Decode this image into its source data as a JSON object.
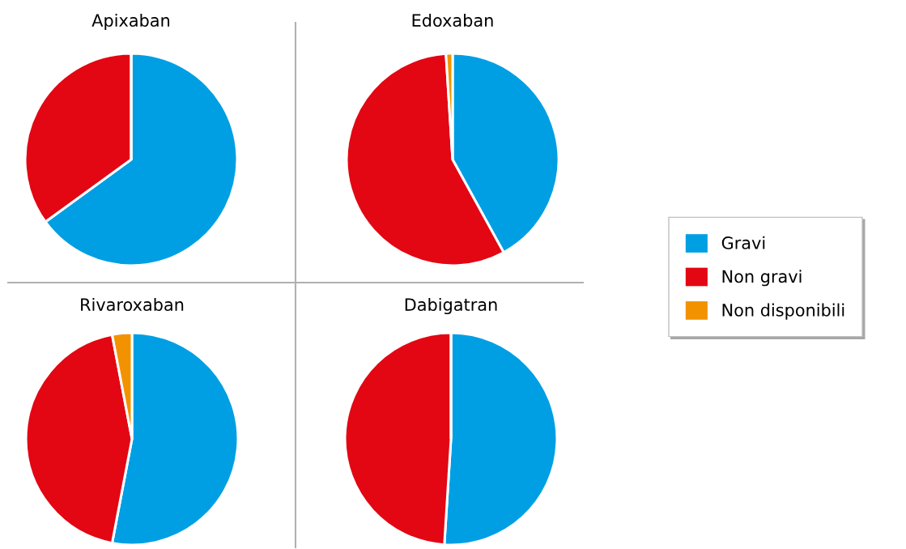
{
  "chart_data": [
    {
      "type": "pie",
      "title": "Apixaban",
      "categories": [
        "Gravi",
        "Non gravi",
        "Non disponibili"
      ],
      "values": [
        65,
        35,
        0
      ],
      "colors": [
        "#009fe3",
        "#e30613",
        "#f39200"
      ],
      "legend": "right"
    },
    {
      "type": "pie",
      "title": "Edoxaban",
      "categories": [
        null,
        null,
        null
      ],
      "values": [
        42,
        57,
        1
      ],
      "colors": [
        "#009fe3",
        "#e30613",
        "#f39200"
      ]
    },
    {
      "type": "pie",
      "title": "Rivaroxaban",
      "categories": [
        null,
        null,
        null
      ],
      "values": [
        53,
        44,
        3
      ],
      "colors": [
        "#009fe3",
        "#e30613",
        "#f39200"
      ]
    },
    {
      "type": "pie",
      "title": "Dabigatran",
      "categories": [
        null,
        null,
        null
      ],
      "values": [
        51,
        49,
        0
      ],
      "colors": [
        "#009fe3",
        "#e30613",
        "#f39200"
      ]
    }
  ]
}
